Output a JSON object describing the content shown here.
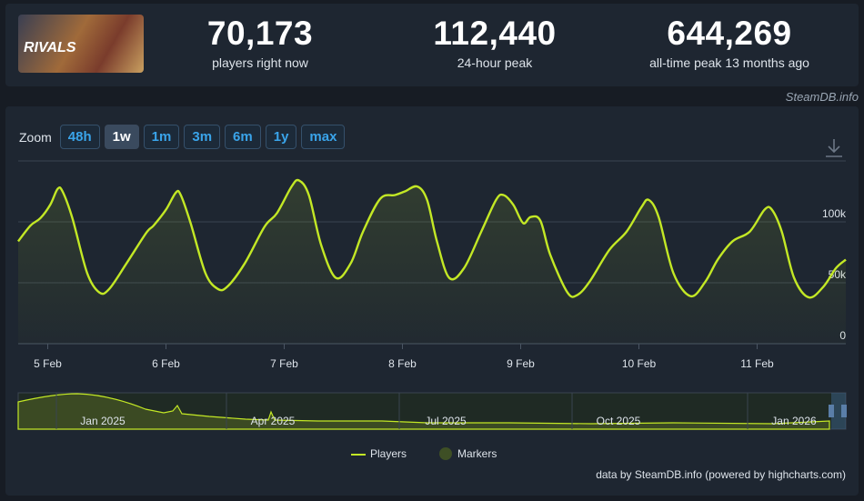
{
  "header": {
    "logo": "RIVALS",
    "stats": [
      {
        "value": "70,173",
        "label": "players right now"
      },
      {
        "value": "112,440",
        "label": "24-hour peak"
      },
      {
        "value": "644,269",
        "label": "all-time peak 13 months ago"
      }
    ],
    "watermark": "SteamDB.info"
  },
  "zoom": {
    "label": "Zoom",
    "options": [
      "48h",
      "1w",
      "1m",
      "3m",
      "6m",
      "1y",
      "max"
    ],
    "active": "1w"
  },
  "chart_data": {
    "type": "line",
    "x": [
      -6,
      -3.5,
      -1.5,
      0.5,
      2,
      3,
      5,
      8,
      10.5,
      12.5,
      16,
      20,
      21.5,
      24,
      26,
      27,
      29,
      32,
      34.5,
      36.5,
      40,
      44,
      46.5,
      49.5,
      51,
      53,
      55.5,
      58.5,
      61.5,
      64,
      67.5,
      70.5,
      72.5,
      75,
      77,
      79,
      81.5,
      84.5,
      88,
      91,
      92.5,
      94.5,
      96.5,
      98,
      100,
      102,
      105.5,
      107.5,
      110,
      114,
      117.5,
      120.5,
      122,
      124,
      127,
      130.5,
      133.5,
      136,
      139,
      142.5,
      145.5,
      147,
      149,
      151.5,
      154.5,
      157.5,
      160,
      162
    ],
    "series": [
      {
        "name": "Players",
        "color": "#c3e825",
        "values": [
          84000,
          97000,
          103000,
          114000,
          127000,
          125000,
          103000,
          58000,
          42000,
          45000,
          66000,
          91000,
          97000,
          110000,
          124000,
          122000,
          99000,
          58000,
          45000,
          47000,
          66000,
          96000,
          107000,
          129000,
          134000,
          122000,
          81000,
          54000,
          66000,
          92000,
          119000,
          122000,
          125000,
          129000,
          118000,
          84000,
          54000,
          62000,
          92000,
          118000,
          122000,
          114000,
          99000,
          104000,
          101000,
          73000,
          42000,
          40000,
          51000,
          77000,
          92000,
          112000,
          118000,
          104000,
          58000,
          39000,
          51000,
          69000,
          84000,
          92000,
          110000,
          110000,
          92000,
          54000,
          38000,
          47000,
          62000,
          69000
        ]
      }
    ],
    "xlim": [
      -6,
      162
    ],
    "xticks": [
      {
        "value": 0,
        "label": "5 Feb"
      },
      {
        "value": 24,
        "label": "6 Feb"
      },
      {
        "value": 48,
        "label": "7 Feb"
      },
      {
        "value": 72,
        "label": "8 Feb"
      },
      {
        "value": 96,
        "label": "9 Feb"
      },
      {
        "value": 120,
        "label": "10 Feb"
      },
      {
        "value": 144,
        "label": "11 Feb"
      }
    ],
    "ylim": [
      0,
      150000
    ],
    "yticks": [
      0,
      {
        "value": 50000,
        "label": "50k"
      },
      {
        "value": 100000,
        "label": "100k"
      }
    ],
    "grid": true,
    "markers_legend": {
      "name": "Markers",
      "color": "#3e4f25"
    }
  },
  "navigator": {
    "labels": [
      "Jan 2025",
      "Apr 2025",
      "Jul 2025",
      "Oct 2025",
      "Jan 2026"
    ]
  },
  "credit": "data by SteamDB.info (powered by highcharts.com)"
}
